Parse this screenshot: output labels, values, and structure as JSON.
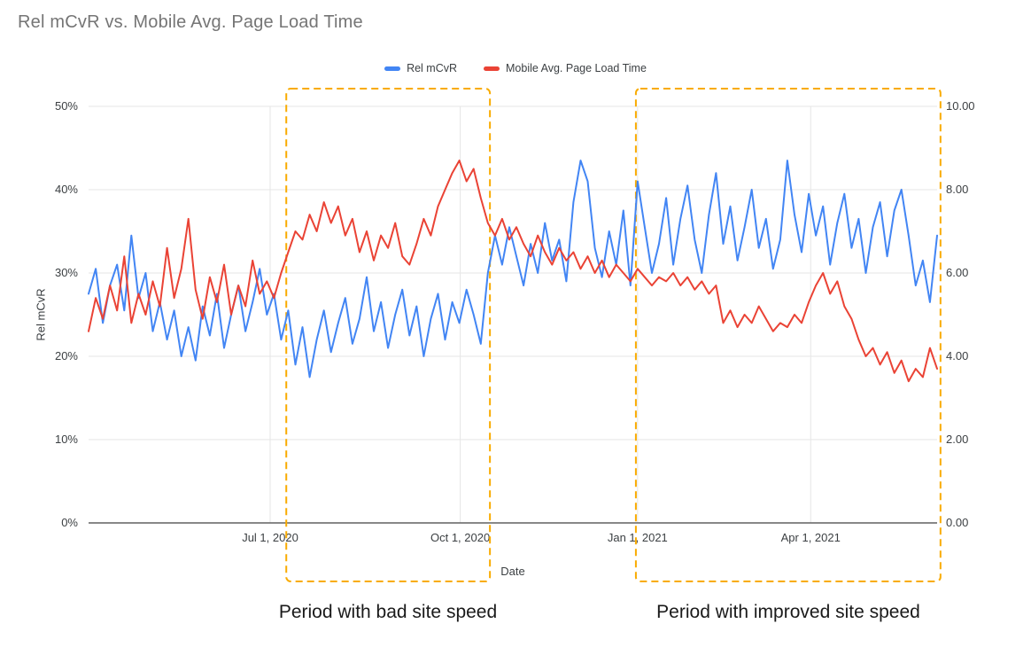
{
  "chart_data": {
    "type": "line",
    "title": "Rel mCvR vs. Mobile Avg. Page Load Time",
    "xlabel": "Date",
    "ylabel_left": "Rel mCvR",
    "legend_position": "top",
    "grid": true,
    "x_range_note": "daily values, ~Apr 2020 to ~Jun 2021, evenly spaced samples",
    "y_left_range": [
      0,
      50
    ],
    "y_right_range": [
      0,
      10
    ],
    "y_left_ticks": [
      "0%",
      "10%",
      "20%",
      "30%",
      "40%",
      "50%"
    ],
    "y_right_ticks": [
      "0.00",
      "2.00",
      "4.00",
      "6.00",
      "8.00",
      "10.00"
    ],
    "x_ticks": [
      {
        "label": "Jul 1, 2020",
        "pos": 0.214
      },
      {
        "label": "Oct 1, 2020",
        "pos": 0.438
      },
      {
        "label": "Jan 1, 2021",
        "pos": 0.647
      },
      {
        "label": "Apr 1, 2021",
        "pos": 0.851
      }
    ],
    "series": [
      {
        "name": "Rel mCvR",
        "axis": "left",
        "unit": "%",
        "color": "#4285F4",
        "values": [
          27.5,
          30.5,
          24,
          28.5,
          31,
          25.5,
          34.5,
          27,
          30,
          23,
          26.5,
          22,
          25.5,
          20,
          23.5,
          19.5,
          26,
          22.5,
          27.5,
          21,
          25,
          28.5,
          23,
          26.5,
          30.5,
          25,
          27.5,
          22,
          25.5,
          19,
          23.5,
          17.5,
          22,
          25.5,
          20.5,
          24,
          27,
          21.5,
          24.5,
          29.5,
          23,
          26.5,
          21,
          25,
          28,
          22.5,
          26,
          20,
          24.5,
          27.5,
          22,
          26.5,
          24,
          28,
          25,
          21.5,
          30,
          34.5,
          31,
          35.5,
          32,
          28.5,
          33.5,
          30,
          36,
          31.5,
          34,
          29,
          38.5,
          43.5,
          41,
          33,
          29.5,
          35,
          31,
          37.5,
          28.5,
          41,
          35.5,
          30,
          33.5,
          39,
          31,
          36.5,
          40.5,
          34,
          30,
          37,
          42,
          33.5,
          38,
          31.5,
          35.5,
          40,
          33,
          36.5,
          30.5,
          34,
          43.5,
          37,
          32.5,
          39.5,
          34.5,
          38,
          31,
          36,
          39.5,
          33,
          36.5,
          30,
          35.5,
          38.5,
          32,
          37.5,
          40,
          34.5,
          28.5,
          31.5,
          26.5,
          34.5
        ]
      },
      {
        "name": "Mobile Avg. Page Load Time",
        "axis": "right",
        "unit": "seconds",
        "color": "#EA4335",
        "values": [
          4.6,
          5.4,
          4.9,
          5.7,
          5.1,
          6.4,
          4.8,
          5.5,
          5,
          5.8,
          5.2,
          6.6,
          5.4,
          6.1,
          7.3,
          5.6,
          4.9,
          5.9,
          5.3,
          6.2,
          5,
          5.7,
          5.2,
          6.3,
          5.5,
          5.8,
          5.4,
          6,
          6.5,
          7,
          6.8,
          7.4,
          7,
          7.7,
          7.2,
          7.6,
          6.9,
          7.3,
          6.5,
          7,
          6.3,
          6.9,
          6.6,
          7.2,
          6.4,
          6.2,
          6.7,
          7.3,
          6.9,
          7.6,
          8,
          8.4,
          8.7,
          8.2,
          8.5,
          7.8,
          7.2,
          6.9,
          7.3,
          6.8,
          7.1,
          6.7,
          6.4,
          6.9,
          6.5,
          6.2,
          6.6,
          6.3,
          6.5,
          6.1,
          6.4,
          6,
          6.3,
          5.9,
          6.2,
          6,
          5.8,
          6.1,
          5.9,
          5.7,
          5.9,
          5.8,
          6,
          5.7,
          5.9,
          5.6,
          5.8,
          5.5,
          5.7,
          4.8,
          5.1,
          4.7,
          5,
          4.8,
          5.2,
          4.9,
          4.6,
          4.8,
          4.7,
          5,
          4.8,
          5.3,
          5.7,
          6,
          5.5,
          5.8,
          5.2,
          4.9,
          4.4,
          4,
          4.2,
          3.8,
          4.1,
          3.6,
          3.9,
          3.4,
          3.7,
          3.5,
          4.2,
          3.7
        ]
      }
    ],
    "annotations": [
      {
        "label": "Period with bad site speed",
        "x0": 0.233,
        "x1": 0.473,
        "color": "#F9AB00"
      },
      {
        "label": "Period with improved site speed",
        "x0": 0.645,
        "x1": 1.004,
        "color": "#F9AB00"
      }
    ]
  }
}
